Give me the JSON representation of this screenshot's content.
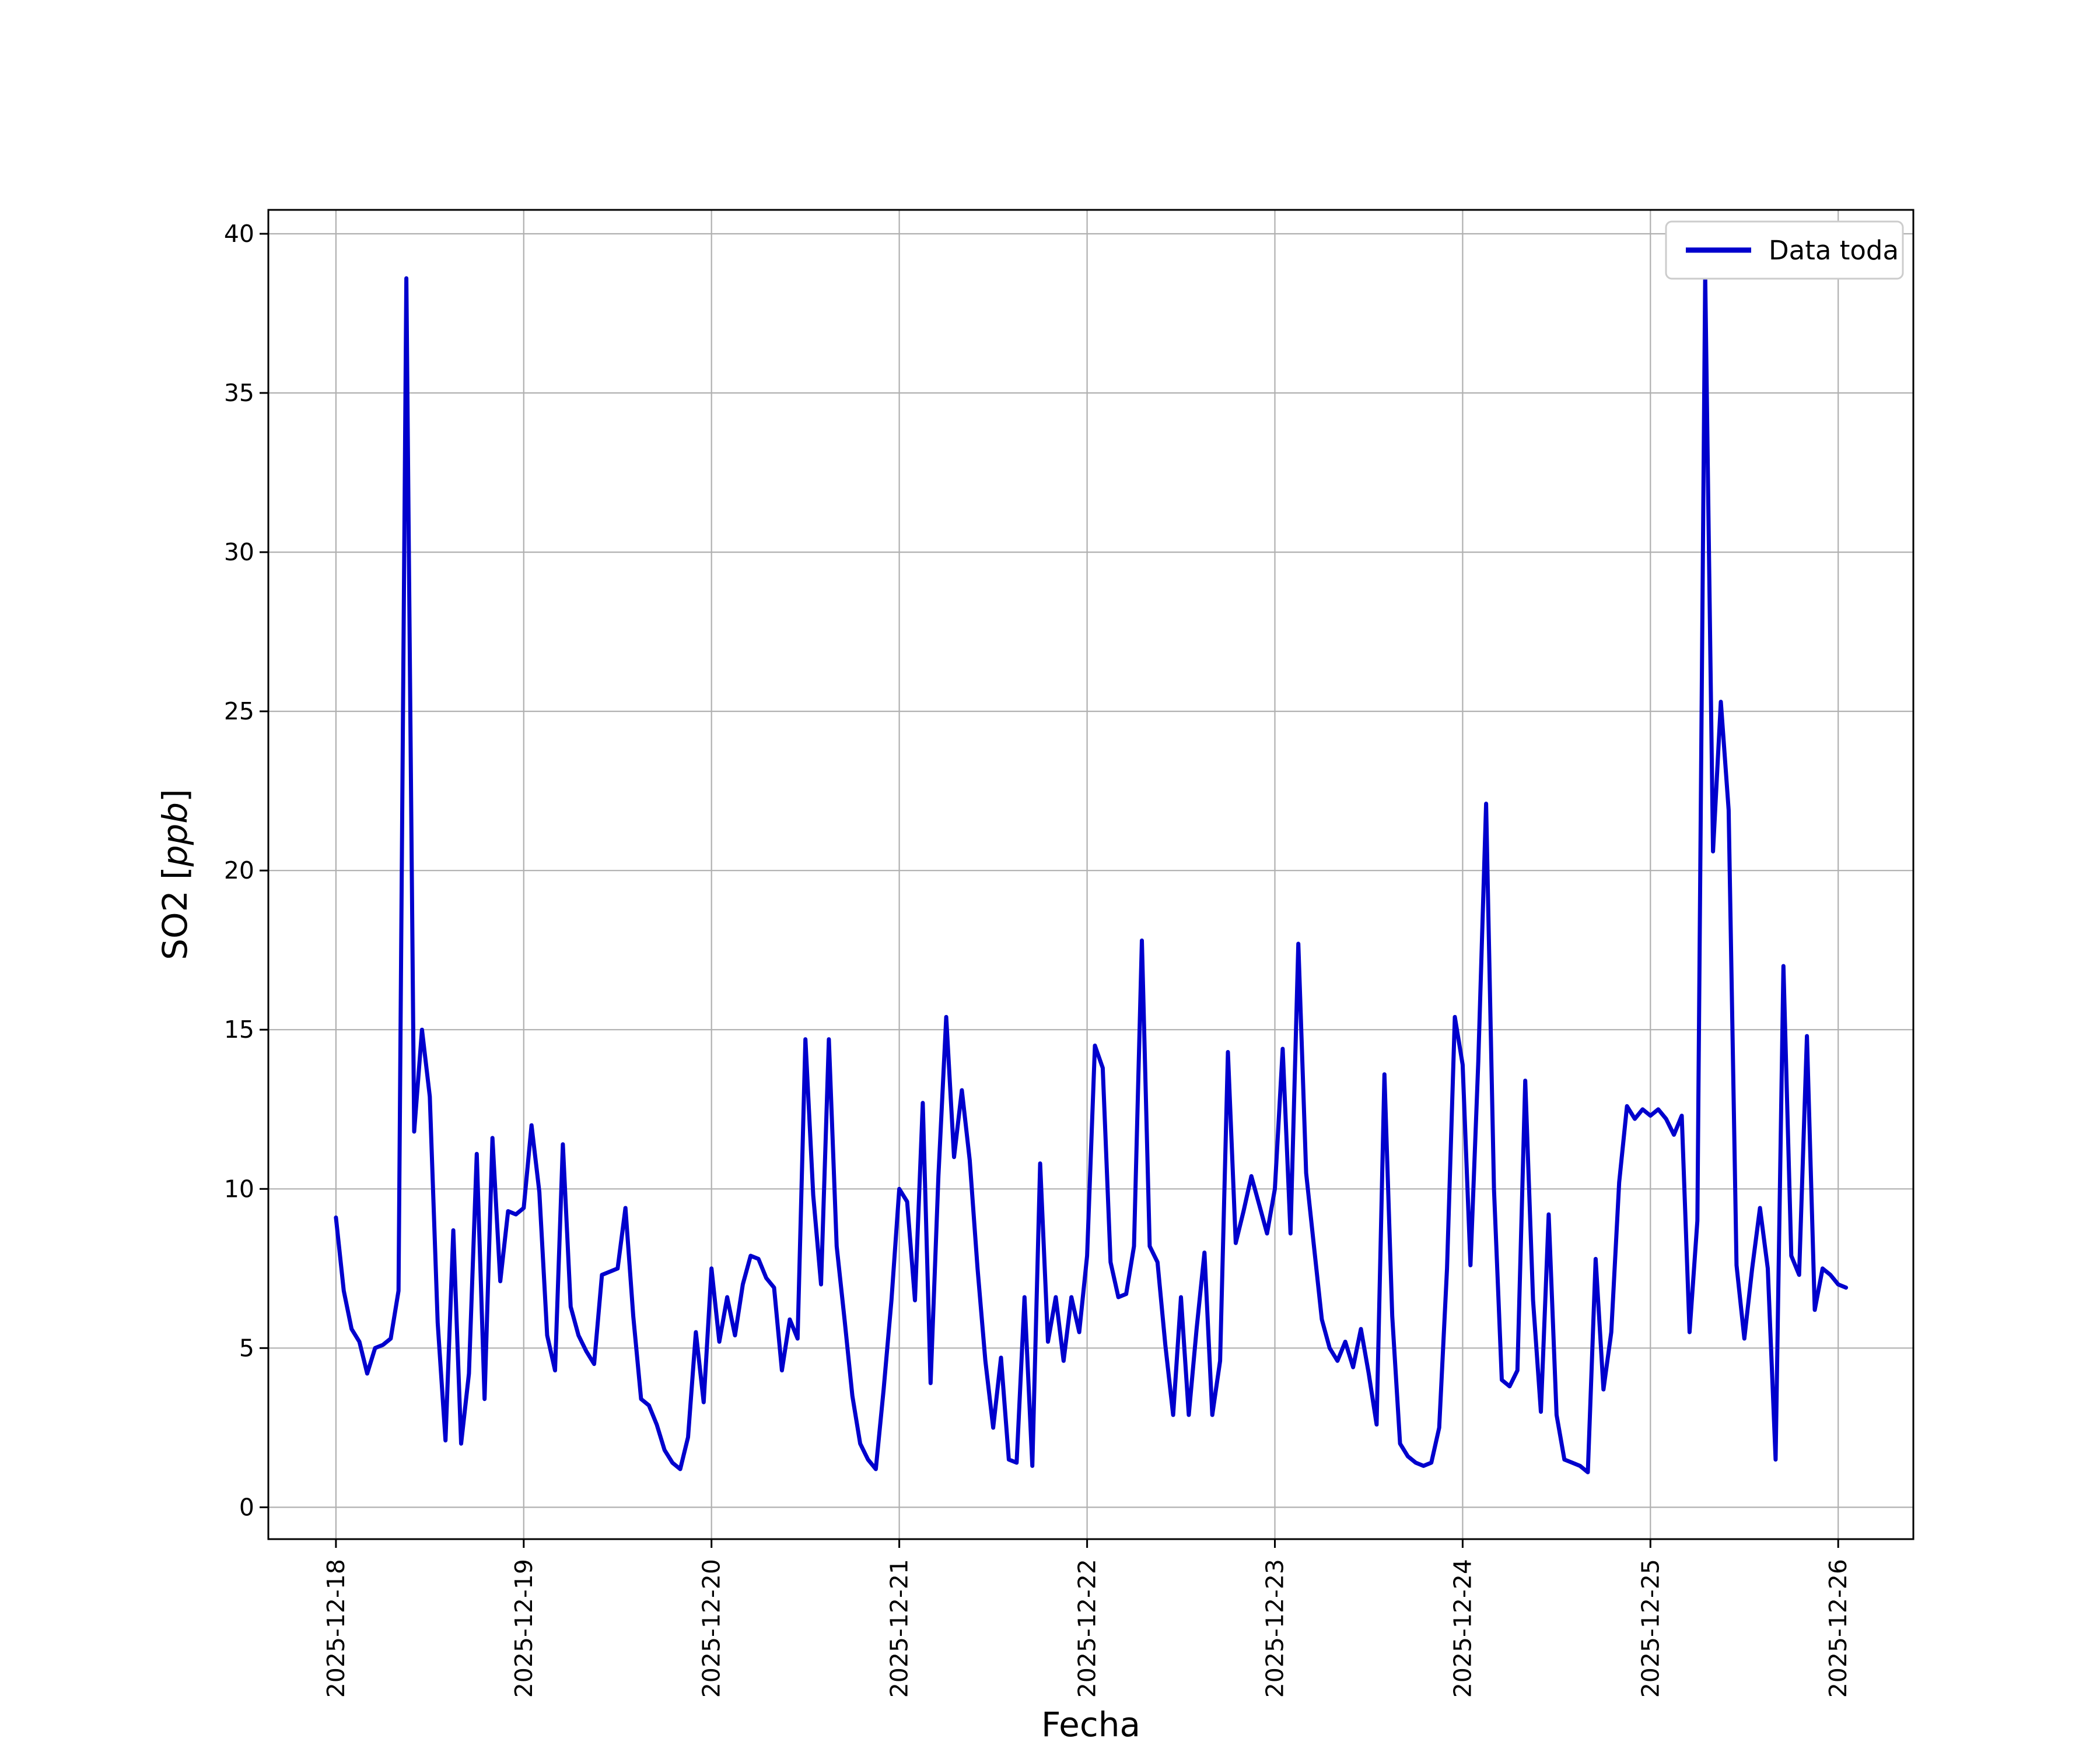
{
  "style": {
    "background": "#ffffff",
    "line_color": "#0000cd",
    "grid_color": "#b0b0b0",
    "spine_color": "#000000",
    "tick_color": "#000000",
    "text_color": "#000000",
    "legend_border": "#cccccc"
  },
  "chart_data": {
    "type": "line",
    "title": "",
    "xlabel": "Fecha",
    "ylabel": "SO2 [ppb]",
    "ylabel_prefix": "SO2 [",
    "ylabel_math": "ppb",
    "ylabel_suffix": "]",
    "legend_position": "upper right",
    "grid": true,
    "x_unit": "hours since 2025-12-18 00:00, 1 sample per hour",
    "x_tick_labels": [
      "2025-12-18",
      "2025-12-19",
      "2025-12-20",
      "2025-12-21",
      "2025-12-22",
      "2025-12-23",
      "2025-12-24",
      "2025-12-25",
      "2025-12-26"
    ],
    "y_ticks": [
      0,
      5,
      10,
      15,
      20,
      25,
      30,
      35,
      40
    ],
    "ylim": [
      -1.0,
      40.75
    ],
    "xlim_days": [
      -0.36,
      8.4
    ],
    "series": [
      {
        "name": "Data toda",
        "values": [
          9.1,
          6.8,
          5.6,
          5.2,
          4.2,
          5.0,
          5.1,
          5.3,
          6.8,
          38.6,
          11.8,
          15.0,
          12.9,
          5.8,
          2.1,
          8.7,
          2.0,
          4.2,
          11.1,
          3.4,
          11.6,
          7.1,
          9.3,
          9.2,
          9.4,
          12.0,
          9.9,
          5.4,
          4.3,
          11.4,
          6.3,
          5.4,
          4.9,
          4.5,
          7.3,
          7.4,
          7.5,
          9.4,
          6.0,
          3.4,
          3.2,
          2.6,
          1.8,
          1.4,
          1.2,
          2.2,
          5.5,
          3.3,
          7.5,
          5.2,
          6.6,
          5.4,
          7.0,
          7.9,
          7.8,
          7.2,
          6.9,
          4.3,
          5.9,
          5.3,
          14.7,
          9.8,
          7.0,
          14.7,
          8.2,
          5.9,
          3.5,
          2.0,
          1.5,
          1.2,
          3.7,
          6.5,
          10.0,
          9.6,
          6.5,
          12.7,
          3.9,
          10.4,
          15.4,
          11.0,
          13.1,
          10.9,
          7.5,
          4.6,
          2.5,
          4.7,
          1.5,
          1.4,
          6.6,
          1.3,
          10.8,
          5.2,
          6.6,
          4.6,
          6.6,
          5.5,
          7.9,
          14.5,
          13.8,
          7.7,
          6.6,
          6.7,
          8.2,
          17.8,
          8.2,
          7.7,
          5.1,
          2.9,
          6.6,
          2.9,
          5.6,
          8.0,
          2.9,
          4.6,
          14.3,
          8.3,
          9.3,
          10.4,
          9.5,
          8.6,
          10.0,
          14.4,
          8.6,
          17.7,
          10.5,
          8.2,
          5.9,
          5.0,
          4.6,
          5.2,
          4.4,
          5.6,
          4.2,
          2.6,
          13.6,
          6.0,
          2.0,
          1.6,
          1.4,
          1.3,
          1.4,
          2.5,
          7.5,
          15.4,
          13.9,
          7.6,
          14.0,
          22.1,
          10.0,
          4.0,
          3.8,
          4.3,
          13.4,
          6.5,
          3.0,
          9.2,
          2.9,
          1.5,
          1.4,
          1.3,
          1.1,
          7.8,
          3.7,
          5.5,
          10.2,
          12.6,
          12.2,
          12.5,
          12.3,
          12.5,
          12.2,
          11.7,
          12.3,
          5.5,
          9.0,
          38.7,
          20.6,
          25.3,
          21.9,
          7.6,
          5.3,
          7.5,
          9.4,
          7.5,
          1.5,
          17.0,
          7.9,
          7.3,
          14.8,
          6.2,
          7.5,
          7.3,
          7.0,
          6.9
        ]
      }
    ]
  }
}
